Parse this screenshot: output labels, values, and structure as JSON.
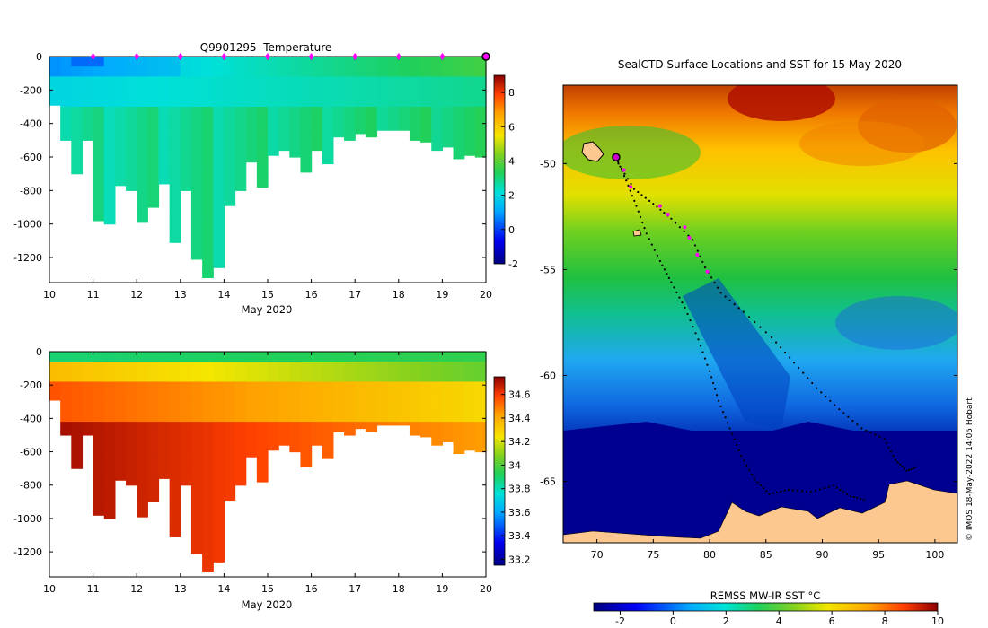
{
  "chart_data": [
    {
      "type": "heatmap",
      "title": "Q9901295  Temperature",
      "xlabel": "May 2020",
      "x_ticks": [
        10,
        11,
        12,
        13,
        14,
        15,
        16,
        17,
        18,
        19,
        20
      ],
      "xlim": [
        10,
        20
      ],
      "y_ticks": [
        0,
        -200,
        -400,
        -600,
        -800,
        -1000,
        -1200
      ],
      "ylim": [
        -1350,
        0
      ],
      "colorbar_ticks": [
        -2,
        0,
        2,
        4,
        6,
        8
      ],
      "colorbar_range": [
        -2,
        9
      ],
      "profile_max_depth": [
        -290,
        -500,
        -700,
        -500,
        -980,
        -1000,
        -770,
        -800,
        -990,
        -900,
        -760,
        -1110,
        -800,
        -1210,
        -1320,
        -1260,
        -890,
        -800,
        -630,
        -780,
        -590,
        -560,
        -600,
        -690,
        -560,
        -640,
        -480,
        -500,
        -460,
        -480,
        -440,
        -440,
        -440,
        -500,
        -510,
        -560,
        -540,
        -610,
        -590,
        -600
      ],
      "surface_markers_x": [
        11,
        12,
        13,
        14,
        15,
        16,
        17,
        18,
        19
      ],
      "end_marker_x": 20
    },
    {
      "type": "heatmap",
      "title": "",
      "xlabel": "May 2020",
      "x_ticks": [
        10,
        11,
        12,
        13,
        14,
        15,
        16,
        17,
        18,
        19,
        20
      ],
      "xlim": [
        10,
        20
      ],
      "y_ticks": [
        0,
        -200,
        -400,
        -600,
        -800,
        -1000,
        -1200
      ],
      "ylim": [
        -1350,
        0
      ],
      "colorbar_ticks": [
        33.2,
        33.4,
        33.6,
        33.8,
        34,
        34.2,
        34.4,
        34.6
      ],
      "colorbar_tick_labels": [
        "33.2",
        "33.4",
        "33.6",
        "33.8",
        "34",
        "34.2",
        "34.4",
        "34.6"
      ],
      "colorbar_range": [
        33.15,
        34.75
      ]
    },
    {
      "type": "heatmap",
      "title": "SealCTD Surface Locations and SST for 15 May 2020",
      "xlabel": "REMSS MW-IR SST °C",
      "lon_ticks": [
        70,
        75,
        80,
        85,
        90,
        95,
        100
      ],
      "lon_range": [
        67,
        102
      ],
      "lat_ticks": [
        -50,
        -55,
        -60,
        -65
      ],
      "lat_range": [
        -67.9,
        -46.3
      ],
      "colorbar_ticks": [
        -2,
        0,
        2,
        4,
        6,
        8,
        10
      ],
      "colorbar_range": [
        -3,
        10
      ],
      "track_start": {
        "lon": 71.7,
        "lat": -49.7
      },
      "recent_positions": [
        {
          "lon": 72.4,
          "lat": -50.3
        },
        {
          "lon": 73.0,
          "lat": -51.1
        },
        {
          "lon": 75.6,
          "lat": -52.0
        },
        {
          "lon": 76.3,
          "lat": -52.4
        },
        {
          "lon": 77.8,
          "lat": -53.0
        },
        {
          "lon": 78.2,
          "lat": -53.5
        },
        {
          "lon": 78.9,
          "lat": -54.3
        },
        {
          "lon": 79.8,
          "lat": -55.1
        }
      ],
      "credit": "© IMOS 18-May-2022 14:05 Hobart"
    }
  ]
}
